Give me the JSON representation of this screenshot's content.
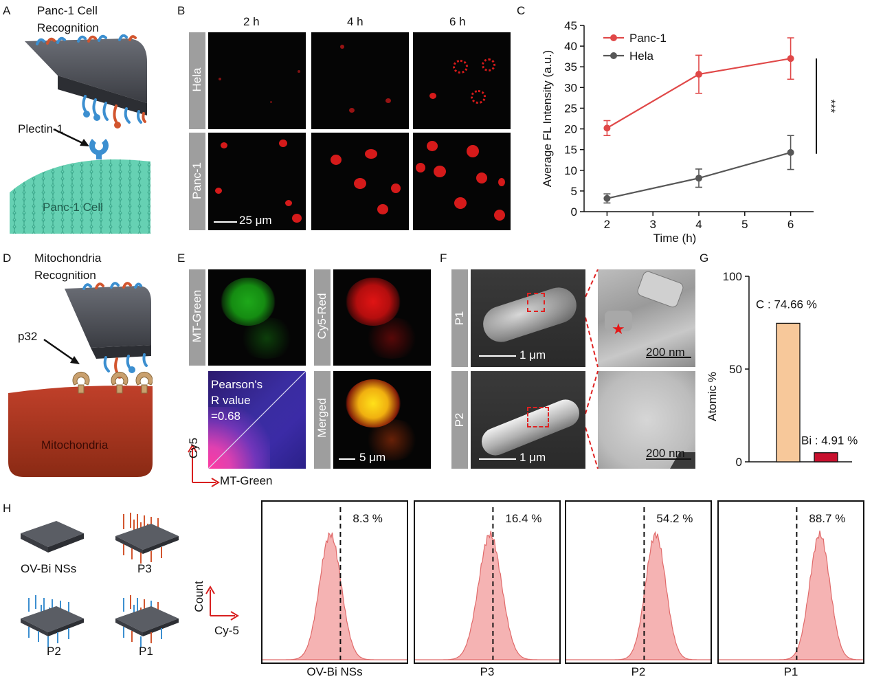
{
  "panels": {
    "A": {
      "letter": "A",
      "title_line1": "Panc-1 Cell",
      "title_line2": "Recognition",
      "protein_label": "Plectin-1",
      "cell_label": "Panc-1 Cell"
    },
    "B": {
      "letter": "B",
      "timepoints": [
        "2 h",
        "4 h",
        "6 h"
      ],
      "rows": [
        "Hela",
        "Panc-1"
      ],
      "scale_label": "25 μm"
    },
    "C": {
      "letter": "C",
      "significance": "***"
    },
    "D": {
      "letter": "D",
      "title_line1": "Mitochondria",
      "title_line2": "Recognition",
      "protein_label": "p32",
      "organelle_label": "Mitochondria"
    },
    "E": {
      "letter": "E",
      "channels": [
        "MT-Green",
        "Cy5-Red",
        "Merged"
      ],
      "pearson_line1": "Pearson's",
      "pearson_line2": "R value",
      "pearson_line3": "=0.68",
      "axis_y": "Cy5",
      "axis_x": "MT-Green",
      "scale_label": "5 μm"
    },
    "F": {
      "letter": "F",
      "rows": [
        "P1",
        "P2"
      ],
      "scale_low": "1 μm",
      "scale_high": "200 nm"
    },
    "G": {
      "letter": "G"
    },
    "H": {
      "letter": "H",
      "materials": [
        "OV-Bi NSs",
        "P3",
        "P2",
        "P1"
      ],
      "axis_y": "Count",
      "axis_x": "Cy-5"
    }
  },
  "colors": {
    "panc1": "#e04848",
    "hela": "#575757",
    "carbon_bar": "#f7c89a",
    "bismuth_bar": "#c8102e",
    "hist_fill": "#f5b3b3",
    "hist_line": "#e06a6a",
    "membrane": "#5ecfb0",
    "mito": "#a93a20",
    "substrate": "#4a4d55",
    "fluor_red": "#d51a1a",
    "mt_green": "#22c81e",
    "merge_yellow": "#ffe11a"
  },
  "chart_data": [
    {
      "type": "line",
      "title": "",
      "xlabel": "Time (h)",
      "ylabel": "Average FL Intensity (a.u.)",
      "xlim": [
        1.5,
        6.5
      ],
      "ylim": [
        0,
        45
      ],
      "xticks": [
        2,
        3,
        4,
        5,
        6
      ],
      "yticks": [
        0,
        5,
        10,
        15,
        20,
        25,
        30,
        35,
        40,
        45
      ],
      "legend_position": "top-left",
      "series": [
        {
          "name": "Panc-1",
          "x": [
            2,
            4,
            6
          ],
          "y": [
            20.2,
            33.2,
            37.0
          ],
          "error": [
            1.8,
            4.6,
            5.0
          ]
        },
        {
          "name": "Hela",
          "x": [
            2,
            4,
            6
          ],
          "y": [
            3.2,
            8.1,
            14.3
          ],
          "error": [
            1.1,
            2.2,
            4.1
          ]
        }
      ]
    },
    {
      "type": "bar",
      "ylabel": "Atomic %",
      "ylim": [
        0,
        100
      ],
      "yticks": [
        0,
        50,
        100
      ],
      "categories": [
        "C",
        "Bi"
      ],
      "values": [
        74.66,
        4.91
      ],
      "data_labels": [
        "C : 74.66 %",
        "Bi : 4.91 %"
      ]
    },
    {
      "type": "area",
      "xlabel": "Cy-5",
      "ylabel": "Count",
      "panels": [
        {
          "name": "OV-Bi NSs",
          "gate_percent": "8.3 %",
          "peak": 0.47,
          "width": 0.075
        },
        {
          "name": "P3",
          "gate_percent": "16.4 %",
          "peak": 0.52,
          "width": 0.08
        },
        {
          "name": "P2",
          "gate_percent": "54.2 %",
          "peak": 0.62,
          "width": 0.07
        },
        {
          "name": "P1",
          "gate_percent": "88.7 %",
          "peak": 0.7,
          "width": 0.07
        }
      ]
    }
  ]
}
